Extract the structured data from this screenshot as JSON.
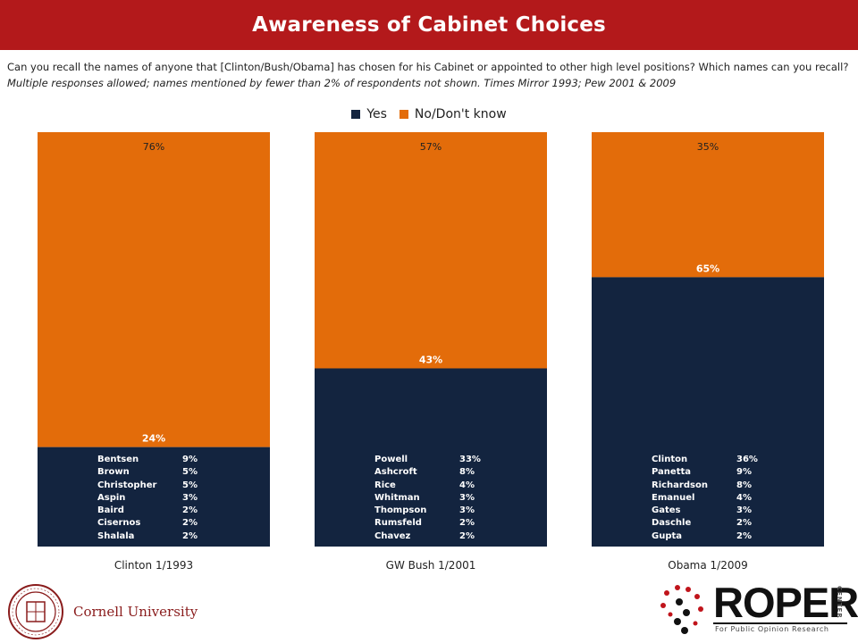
{
  "header": {
    "title": "Awareness of Cabinet Choices"
  },
  "question": {
    "text": "Can you recall the names of anyone that [Clinton/Bush/Obama] has chosen for his Cabinet or appointed to other high level positions?  Which names can you recall? ",
    "note": "Multiple responses allowed; names mentioned by fewer than 2% of respondents not shown. Times Mirror 1993;  Pew 2001  & 2009"
  },
  "chart_data": {
    "type": "bar",
    "stacked": true,
    "percent_stacked": true,
    "categories": [
      "Clinton 1/1993",
      "GW Bush 1/2001",
      "Obama 1/2009"
    ],
    "series": [
      {
        "name": "Yes",
        "values": [
          24,
          43,
          65
        ],
        "labels": [
          "24%",
          "43%",
          "65%"
        ],
        "color": "#13243f"
      },
      {
        "name": "No/Don't know",
        "values": [
          76,
          57,
          35
        ],
        "labels": [
          "76%",
          "57%",
          "35%"
        ],
        "color": "#e36c0a"
      }
    ],
    "ylim": [
      0,
      100
    ],
    "grid": false,
    "legend_position": "top-center",
    "name_breakdowns": [
      [
        {
          "name": "Bentsen",
          "value": "9%"
        },
        {
          "name": "Brown",
          "value": "5%"
        },
        {
          "name": "Christopher",
          "value": "5%"
        },
        {
          "name": "Aspin",
          "value": "3%"
        },
        {
          "name": "Baird",
          "value": "2%"
        },
        {
          "name": "Cisernos",
          "value": "2%"
        },
        {
          "name": "Shalala",
          "value": "2%"
        }
      ],
      [
        {
          "name": "Powell",
          "value": "33%"
        },
        {
          "name": "Ashcroft",
          "value": "8%"
        },
        {
          "name": "Rice",
          "value": "4%"
        },
        {
          "name": "Whitman",
          "value": "3%"
        },
        {
          "name": "Thompson",
          "value": "3%"
        },
        {
          "name": "Rumsfeld",
          "value": "2%"
        },
        {
          "name": "Chavez",
          "value": "2%"
        }
      ],
      [
        {
          "name": "Clinton",
          "value": "36%"
        },
        {
          "name": "Panetta",
          "value": "9%"
        },
        {
          "name": "Richardson",
          "value": "8%"
        },
        {
          "name": "Emanuel",
          "value": "4%"
        },
        {
          "name": "Gates",
          "value": "3%"
        },
        {
          "name": "Daschle",
          "value": "2%"
        },
        {
          "name": "Gupta",
          "value": "2%"
        }
      ]
    ]
  },
  "footer": {
    "left_logo_text": "Cornell University",
    "right_logo_word": "ROPER",
    "right_logo_center": "CENTER",
    "right_logo_sub": "For Public Opinion Research"
  }
}
